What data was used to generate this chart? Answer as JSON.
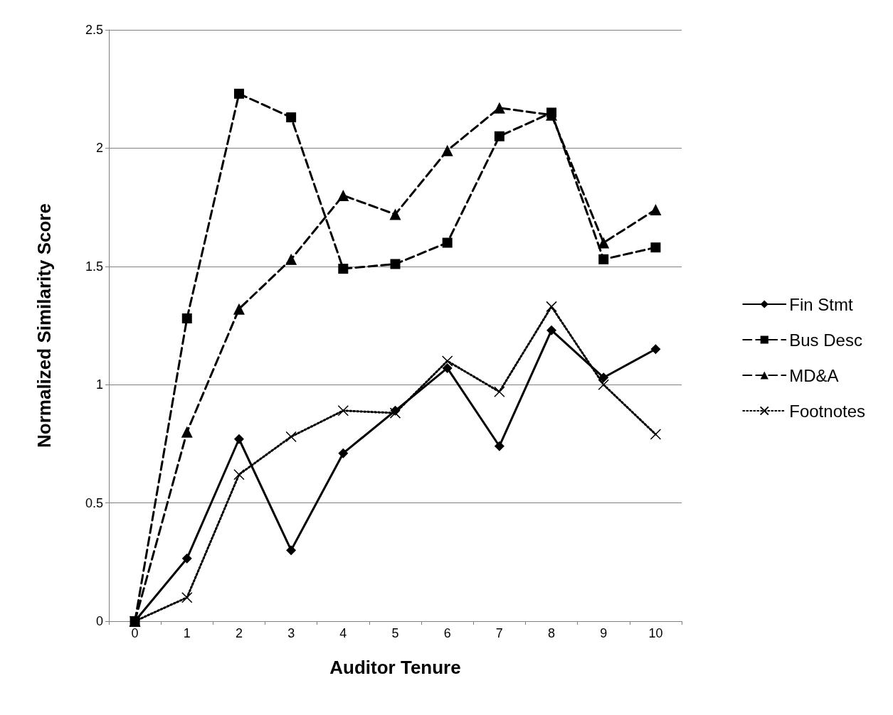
{
  "chart_data": {
    "type": "line",
    "xlabel": "Auditor Tenure",
    "ylabel": "Normalized Similarity Score",
    "categories": [
      "0",
      "1",
      "2",
      "3",
      "4",
      "5",
      "6",
      "7",
      "8",
      "9",
      "10"
    ],
    "ylim": [
      0,
      2.5
    ],
    "yticks": [
      0,
      0.5,
      1,
      1.5,
      2,
      2.5
    ],
    "grid": "y",
    "legend": "right",
    "series": [
      {
        "name": "Fin Stmt",
        "color": "#000000",
        "marker": "diamond",
        "line_style": "solid",
        "values": [
          0,
          0.265,
          0.77,
          0.3,
          0.71,
          0.89,
          1.07,
          0.74,
          1.23,
          1.03,
          1.15
        ]
      },
      {
        "name": "Bus Desc",
        "color": "#000000",
        "marker": "square",
        "line_style": "dashed",
        "values": [
          0,
          1.28,
          2.23,
          2.13,
          1.49,
          1.51,
          1.6,
          2.05,
          2.15,
          1.53,
          1.58
        ]
      },
      {
        "name": "MD&A",
        "color": "#000000",
        "marker": "triangle",
        "line_style": "dashed",
        "values": [
          0,
          0.8,
          1.32,
          1.53,
          1.8,
          1.72,
          1.99,
          2.17,
          2.14,
          1.6,
          1.74
        ]
      },
      {
        "name": "Footnotes",
        "color": "#000000",
        "marker": "cross",
        "line_style": "dotted",
        "values": [
          0,
          0.1,
          0.62,
          0.78,
          0.89,
          0.88,
          1.1,
          0.97,
          1.33,
          1,
          0.79
        ]
      }
    ]
  }
}
